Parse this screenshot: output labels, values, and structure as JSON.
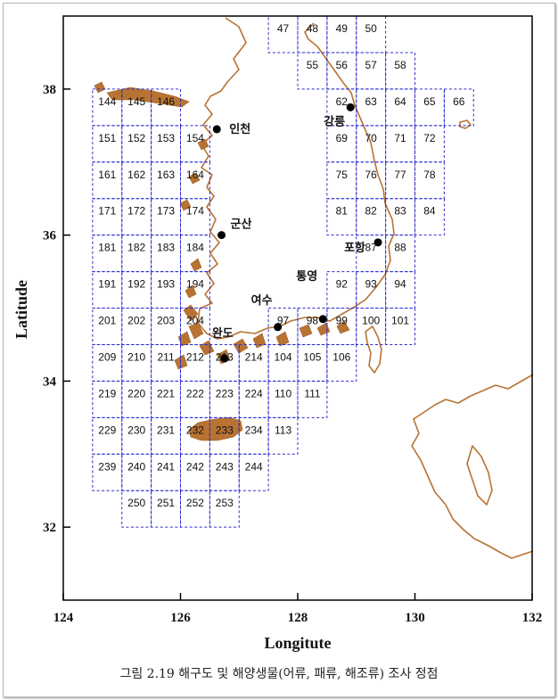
{
  "map": {
    "x_axis_title": "Longitute",
    "y_axis_title": "Latitude",
    "x_ticks": [
      {
        "value": 124,
        "label": "124"
      },
      {
        "value": 126,
        "label": "126"
      },
      {
        "value": 128,
        "label": "128"
      },
      {
        "value": 130,
        "label": "130"
      },
      {
        "value": 132,
        "label": "132"
      }
    ],
    "y_ticks": [
      {
        "value": 32,
        "label": "32"
      },
      {
        "value": 34,
        "label": "34"
      },
      {
        "value": 36,
        "label": "36"
      },
      {
        "value": 38,
        "label": "38"
      }
    ],
    "x_range": [
      124,
      132
    ],
    "y_range": [
      31,
      39
    ],
    "grid_step_deg": 0.5,
    "cells": [
      {
        "id": "47",
        "lon": 127.5,
        "lat": 38.5
      },
      {
        "id": "48",
        "lon": 128.0,
        "lat": 38.5
      },
      {
        "id": "49",
        "lon": 128.5,
        "lat": 38.5
      },
      {
        "id": "50",
        "lon": 129.0,
        "lat": 38.5
      },
      {
        "id": "55",
        "lon": 128.0,
        "lat": 38.0
      },
      {
        "id": "56",
        "lon": 128.5,
        "lat": 38.0
      },
      {
        "id": "57",
        "lon": 129.0,
        "lat": 38.0
      },
      {
        "id": "58",
        "lon": 129.5,
        "lat": 38.0
      },
      {
        "id": "62",
        "lon": 128.5,
        "lat": 37.5
      },
      {
        "id": "63",
        "lon": 129.0,
        "lat": 37.5
      },
      {
        "id": "64",
        "lon": 129.5,
        "lat": 37.5
      },
      {
        "id": "65",
        "lon": 130.0,
        "lat": 37.5
      },
      {
        "id": "66",
        "lon": 130.5,
        "lat": 37.5
      },
      {
        "id": "69",
        "lon": 128.5,
        "lat": 37.0
      },
      {
        "id": "70",
        "lon": 129.0,
        "lat": 37.0
      },
      {
        "id": "71",
        "lon": 129.5,
        "lat": 37.0
      },
      {
        "id": "72",
        "lon": 130.0,
        "lat": 37.0
      },
      {
        "id": "75",
        "lon": 128.5,
        "lat": 36.5
      },
      {
        "id": "76",
        "lon": 129.0,
        "lat": 36.5
      },
      {
        "id": "77",
        "lon": 129.5,
        "lat": 36.5
      },
      {
        "id": "78",
        "lon": 130.0,
        "lat": 36.5
      },
      {
        "id": "81",
        "lon": 128.5,
        "lat": 36.0
      },
      {
        "id": "82",
        "lon": 129.0,
        "lat": 36.0
      },
      {
        "id": "83",
        "lon": 129.5,
        "lat": 36.0
      },
      {
        "id": "84",
        "lon": 130.0,
        "lat": 36.0
      },
      {
        "id": "87",
        "lon": 129.0,
        "lat": 35.5
      },
      {
        "id": "88",
        "lon": 129.5,
        "lat": 35.5
      },
      {
        "id": "92",
        "lon": 128.5,
        "lat": 35.0
      },
      {
        "id": "93",
        "lon": 129.0,
        "lat": 35.0
      },
      {
        "id": "94",
        "lon": 129.5,
        "lat": 35.0
      },
      {
        "id": "97",
        "lon": 127.5,
        "lat": 34.5
      },
      {
        "id": "98",
        "lon": 128.0,
        "lat": 34.5
      },
      {
        "id": "99",
        "lon": 128.5,
        "lat": 34.5
      },
      {
        "id": "100",
        "lon": 129.0,
        "lat": 34.5
      },
      {
        "id": "101",
        "lon": 129.5,
        "lat": 34.5
      },
      {
        "id": "104",
        "lon": 127.5,
        "lat": 34.0
      },
      {
        "id": "105",
        "lon": 128.0,
        "lat": 34.0
      },
      {
        "id": "106",
        "lon": 128.5,
        "lat": 34.0
      },
      {
        "id": "110",
        "lon": 127.5,
        "lat": 33.5
      },
      {
        "id": "111",
        "lon": 128.0,
        "lat": 33.5
      },
      {
        "id": "113",
        "lon": 127.5,
        "lat": 33.0
      },
      {
        "id": "144",
        "lon": 124.5,
        "lat": 37.5
      },
      {
        "id": "145",
        "lon": 125.0,
        "lat": 37.5
      },
      {
        "id": "146",
        "lon": 125.5,
        "lat": 37.5
      },
      {
        "id": "151",
        "lon": 124.5,
        "lat": 37.0
      },
      {
        "id": "152",
        "lon": 125.0,
        "lat": 37.0
      },
      {
        "id": "153",
        "lon": 125.5,
        "lat": 37.0
      },
      {
        "id": "154",
        "lon": 126.0,
        "lat": 37.0
      },
      {
        "id": "161",
        "lon": 124.5,
        "lat": 36.5
      },
      {
        "id": "162",
        "lon": 125.0,
        "lat": 36.5
      },
      {
        "id": "163",
        "lon": 125.5,
        "lat": 36.5
      },
      {
        "id": "164",
        "lon": 126.0,
        "lat": 36.5
      },
      {
        "id": "171",
        "lon": 124.5,
        "lat": 36.0
      },
      {
        "id": "172",
        "lon": 125.0,
        "lat": 36.0
      },
      {
        "id": "173",
        "lon": 125.5,
        "lat": 36.0
      },
      {
        "id": "174",
        "lon": 126.0,
        "lat": 36.0
      },
      {
        "id": "181",
        "lon": 124.5,
        "lat": 35.5
      },
      {
        "id": "182",
        "lon": 125.0,
        "lat": 35.5
      },
      {
        "id": "183",
        "lon": 125.5,
        "lat": 35.5
      },
      {
        "id": "184",
        "lon": 126.0,
        "lat": 35.5
      },
      {
        "id": "191",
        "lon": 124.5,
        "lat": 35.0
      },
      {
        "id": "192",
        "lon": 125.0,
        "lat": 35.0
      },
      {
        "id": "193",
        "lon": 125.5,
        "lat": 35.0
      },
      {
        "id": "194",
        "lon": 126.0,
        "lat": 35.0
      },
      {
        "id": "201",
        "lon": 124.5,
        "lat": 34.5
      },
      {
        "id": "202",
        "lon": 125.0,
        "lat": 34.5
      },
      {
        "id": "203",
        "lon": 125.5,
        "lat": 34.5
      },
      {
        "id": "204",
        "lon": 126.0,
        "lat": 34.5
      },
      {
        "id": "209",
        "lon": 124.5,
        "lat": 34.0
      },
      {
        "id": "210",
        "lon": 125.0,
        "lat": 34.0
      },
      {
        "id": "211",
        "lon": 125.5,
        "lat": 34.0
      },
      {
        "id": "212",
        "lon": 126.0,
        "lat": 34.0
      },
      {
        "id": "213",
        "lon": 126.5,
        "lat": 34.0
      },
      {
        "id": "214",
        "lon": 127.0,
        "lat": 34.0
      },
      {
        "id": "219",
        "lon": 124.5,
        "lat": 33.5
      },
      {
        "id": "220",
        "lon": 125.0,
        "lat": 33.5
      },
      {
        "id": "221",
        "lon": 125.5,
        "lat": 33.5
      },
      {
        "id": "222",
        "lon": 126.0,
        "lat": 33.5
      },
      {
        "id": "223",
        "lon": 126.5,
        "lat": 33.5
      },
      {
        "id": "224",
        "lon": 127.0,
        "lat": 33.5
      },
      {
        "id": "229",
        "lon": 124.5,
        "lat": 33.0
      },
      {
        "id": "230",
        "lon": 125.0,
        "lat": 33.0
      },
      {
        "id": "231",
        "lon": 125.5,
        "lat": 33.0
      },
      {
        "id": "232",
        "lon": 126.0,
        "lat": 33.0
      },
      {
        "id": "233",
        "lon": 126.5,
        "lat": 33.0
      },
      {
        "id": "234",
        "lon": 127.0,
        "lat": 33.0
      },
      {
        "id": "239",
        "lon": 124.5,
        "lat": 32.5
      },
      {
        "id": "240",
        "lon": 125.0,
        "lat": 32.5
      },
      {
        "id": "241",
        "lon": 125.5,
        "lat": 32.5
      },
      {
        "id": "242",
        "lon": 126.0,
        "lat": 32.5
      },
      {
        "id": "243",
        "lon": 126.5,
        "lat": 32.5
      },
      {
        "id": "244",
        "lon": 127.0,
        "lat": 32.5
      },
      {
        "id": "250",
        "lon": 125.0,
        "lat": 32.0
      },
      {
        "id": "251",
        "lon": 125.5,
        "lat": 32.0
      },
      {
        "id": "252",
        "lon": 126.0,
        "lat": 32.0
      },
      {
        "id": "253",
        "lon": 126.5,
        "lat": 32.0
      }
    ],
    "places": [
      {
        "name": "인천",
        "lon": 126.62,
        "lat": 37.45
      },
      {
        "name": "강릉",
        "lon": 128.9,
        "lat": 37.75
      },
      {
        "name": "군산",
        "lon": 126.7,
        "lat": 36.0
      },
      {
        "name": "포항",
        "lon": 129.37,
        "lat": 35.9
      },
      {
        "name": "통영",
        "lon": 128.43,
        "lat": 34.85
      },
      {
        "name": "여수",
        "lon": 127.66,
        "lat": 34.74
      },
      {
        "name": "완도",
        "lon": 126.75,
        "lat": 34.31
      }
    ],
    "colors": {
      "coastline": "#b87333",
      "grid": "#2c2ccf",
      "station": "#000000"
    }
  },
  "caption": "그림 2.19 해구도 및 해양생물(어류, 패류, 해조류) 조사 정점"
}
